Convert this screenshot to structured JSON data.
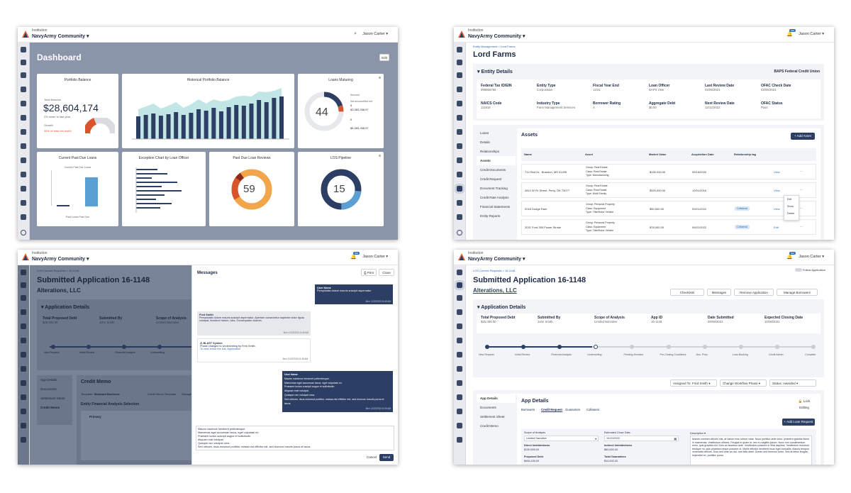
{
  "common": {
    "institution": "Institution",
    "community": "NavyArmy Community ▾",
    "user": "Jason Carter ▾",
    "notif": "999"
  },
  "dashboard": {
    "title": "Dashboard",
    "edit": "Edit",
    "portfolio": {
      "title": "Portfolio Balance",
      "total_label": "Total Balance",
      "amount": "$28,604,174",
      "change": "2% lower to last year",
      "growth": "Growth",
      "pct": "36% of total net worth"
    },
    "historical": {
      "title": "Historical Portfolio Balance"
    },
    "loans_maturing": {
      "title": "Loans Maturing",
      "value": "44",
      "s1": "Secured",
      "s1v": "5",
      "s2": "Not secured/Not net",
      "s2v": "$3,383,268.97",
      "s3": "5",
      "s4": "$6,383,268.97"
    },
    "past_due": {
      "title": "Current Past Due Loans",
      "sub": "Current Past Due Loans",
      "foot": "Past Loans Past Due"
    },
    "exception": {
      "title": "Exception Chart by Loan Officer"
    },
    "reviews": {
      "title": "Past Due Loan Reviews",
      "value": "59"
    },
    "los": {
      "title": "LOS Pipeline",
      "value": "15"
    }
  },
  "entity": {
    "breadcrumb": "Entity Management  >  Lord Farms",
    "title": "Lord Farms",
    "section": "Entity Details",
    "bank": "BAPS Federal Credit Union",
    "fields": [
      {
        "label": "Federal Tax ID/EIN",
        "value": "998856765"
      },
      {
        "label": "Entity Type",
        "value": "Corporation"
      },
      {
        "label": "Fiscal Year End",
        "value": "12/31"
      },
      {
        "label": "Loan Officer",
        "value": "BAPS User"
      },
      {
        "label": "Last Review Date",
        "value": "02/06/2021"
      },
      {
        "label": "OFAC Check Date",
        "value": "02/06/2021"
      },
      {
        "label": "NAICS Code",
        "value": "111516"
      },
      {
        "label": "Industry Type",
        "value": "Farm Management Services"
      },
      {
        "label": "Borrower Rating",
        "value": "A"
      },
      {
        "label": "Aggregate Debt",
        "value": "$0.00"
      },
      {
        "label": "Next Review Date",
        "value": "12/12/2022"
      },
      {
        "label": "OFAC Status",
        "value": "Pass"
      }
    ],
    "nav": [
      "Loans",
      "Details",
      "Relationships",
      "Assets",
      "Credit Documents",
      "Credit Request",
      "Document Tracking",
      "Credit Rate Analysis",
      "Financial Statements",
      "Entity Reports"
    ],
    "assets_title": "Assets",
    "add_asset": "+ Add Asset",
    "headers": [
      "Name",
      "Asset",
      "Market Value",
      "Acquisition Date",
      "Relationship tag"
    ],
    "rows": [
      {
        "name": "714 Red Dr., Brandon, MS 51405",
        "asset": "Group: Real Estate\nClass: Real Estate\nType: Manufacturing",
        "value": "$150,000.00",
        "date": "09/16/2020",
        "tag": "",
        "action": "View"
      },
      {
        "name": "2812 W Fir Street, Perry, OK 73077",
        "asset": "Group: Real Estate\nClass: Real Estate\nType: Multi-Family",
        "value": "$320,000.00",
        "date": "12/01/2016",
        "tag": "",
        "action": "View"
      },
      {
        "name": "2018 Dodge Ram",
        "asset": "Group: Personal Property\nClass: Equipment\nType: Title/Motor Vehicle",
        "value": "$50,000.00",
        "date": "09/21/2022",
        "tag": "Collateral",
        "action": "View"
      },
      {
        "name": "2021 Ford 350 Power Stroke",
        "asset": "Group: Personal Property\nClass: Equipment\nType: Title/Motor Vehicle",
        "value": "$78,000.00",
        "date": "09/21/2022",
        "tag": "Collateral",
        "action": "Edit"
      }
    ],
    "menu": [
      "Edit",
      "Show",
      "Delete"
    ]
  },
  "messages_view": {
    "breadcrumb": "LOS Current Requests  >  16-1148",
    "title": "Submitted Application 16-1148",
    "company": "Alterations, LLC",
    "section": "Application Details",
    "fields": [
      {
        "label": "Total Proposed Debt",
        "value": "$25,000.00"
      },
      {
        "label": "Submitted By",
        "value": "John Smith"
      },
      {
        "label": "Scope of Analysis",
        "value": "Limited Narrative"
      }
    ],
    "steps": [
      "New Request",
      "Initial Review",
      "Financial Analysis",
      "Underwriting"
    ],
    "nav": [
      "App Details",
      "Documents",
      "Settlement Sheet",
      "Credit Memo"
    ],
    "memo_title": "Credit Memo",
    "template": "Template:",
    "template_val": "Standard Business",
    "memo_sub": "Credit Memo Template",
    "storage": "Storage Template",
    "analysis": "Entity Financial Analysis Selection",
    "primary": "Primary",
    "panel_title": "Messages",
    "print": "Print",
    "close": "Close",
    "m1_user": "User Name",
    "m1_text": "Perspiciatis dolore mauris suscipit aspernatur",
    "m1_time": "Mon 11/22/2021 8:45 AM",
    "m2_user": "Fred Smith",
    "m2_text": "Perspiciatis dolore mauris suscipit aspernatur. Aperiam consectetur sapiente dolor ligula volutpat, tincidunt harum, lobs, Consequatur dolores.",
    "m2_time": "Mon 11/22/2021 8:45 AM",
    "m3_user": "BLAST System",
    "m3_text": "Phase changed to Underwriting by Fred Smith.",
    "m3_link": "To view follow the link: Application",
    "m3_time": "Mon 11/22/2021 8:45 AM",
    "m4_user": "User Name",
    "m4_lines": [
      "Mauris maximus hendrerit pellentesque.",
      "Maecenas eget accumsan lacus, eget vulputate ex.",
      "Praesent luctus suscipit augue et sollicitudin.",
      "Aliquam erat volutpat.",
      "Quisque nec volutpat urna.",
      "Sed ultrices, risus euismod porttitor, massa nisl efficitur est, sed rhoncus mauris purus et lacus."
    ],
    "m4_time": "Mon 11/22/2021 8:45 AM",
    "draft": [
      "Mauris maximus hendrerit pellentesque.",
      "Maecenas eget accumsan lacus, eget vulputate ex.",
      "Praesent luctus suscipit augue et sollicitudin.",
      "Aliquam erat volutpat.",
      "Quisque nec volutpat urna.",
      "Sed ultrices, risus euismod porttitor, massa nisl efficitur est, sed rhoncus mauris purus et lacus."
    ],
    "cancel": "Cancel",
    "send": "Send"
  },
  "app": {
    "breadcrumb": "LOS Current Requests  >  16-1148",
    "follow": "Follow Application",
    "title": "Submitted Application 16-1148",
    "company": "Alterations, LLC",
    "actions": [
      "Checklists",
      "Messages",
      "Remove Application",
      "Manage Borrowers"
    ],
    "section": "Application Details",
    "fields": [
      {
        "label": "Total Proposed Debt",
        "value": "$25,000.00"
      },
      {
        "label": "Submitted By",
        "value": "John Smith"
      },
      {
        "label": "Scope of Analysis",
        "value": "Limited Narrative"
      },
      {
        "label": "App ID",
        "value": "16-1148"
      },
      {
        "label": "Date Submitted",
        "value": "09/08/2022"
      },
      {
        "label": "Expected Closing Date",
        "value": "10/08/2022"
      }
    ],
    "steps": [
      "New Request",
      "Initial Review",
      "Financial Analysis",
      "Underwriting",
      "Pending Decision",
      "Pre-Closing Conditions",
      "Doc. Prep",
      "Loan Booking",
      "Credit Admin",
      "Complete"
    ],
    "assigned": "Assigned To: Fred Smith",
    "change_phase": "Change Workflow Phase",
    "status": "Status: Awarded",
    "nav": [
      "App Details",
      "Documents",
      "Settlement Sheet",
      "Credit Memo"
    ],
    "details_title": "App Details",
    "lock": "Lock Editing",
    "tabs": [
      "Borrowers",
      "Credit Request",
      "Guarantors",
      "Collateral"
    ],
    "add_loan": "+ Add Loan Request",
    "f_scope": "Scope of Analysis",
    "f_scope_v": "Limited Narrative",
    "f_close": "Estimated Close Date",
    "f_close_v": "10/10/2022",
    "f_direct": "Direct Indebtedness",
    "f_direct_v": "$130,500.00",
    "f_indirect": "Indirect Indebtedness",
    "f_indirect_v": "$60,000.00",
    "f_debt": "Proposed Debt",
    "f_debt_v": "$406,150.00",
    "f_guar": "Total Guarantees",
    "f_guar_v": "$12,000.00",
    "desc_label": "Description ▾",
    "desc": "Mauris omnium ultrices nisi, at varius eros rutrum vitae. Nunc porttitor ante dolor, pharetra gravida libero in maecenas. Vestibulum ultrices. Feugiat in quam id, nec eu sagittis ipsum. Nunc non condimentum enim, quis gravida nisl. Duis ac faucibus ante. Vestibulum posuere in libra dapibus. Vestibulum euismod tristique mi, quis pharetra neque posuere ut. Morbi efficitur hendrerit risus eget convallis. Mauris tempus venenatis ultrices. Duis sed ante ac nisi, sed felis diam. Donec sed rhoncus tortor. Sed at tellus feugiat, imperdiet ex, porttitor purus."
  }
}
